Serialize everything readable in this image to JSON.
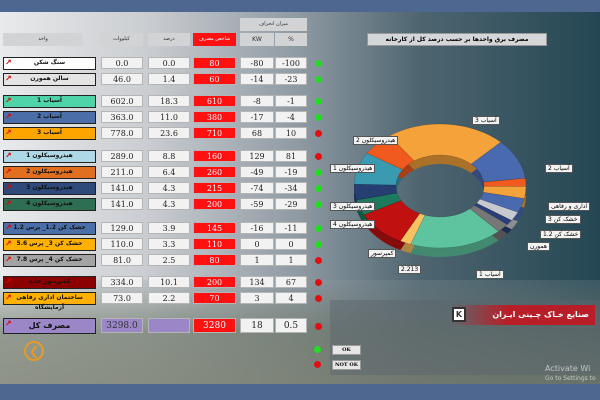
{
  "headers": {
    "unit": "واحد",
    "kw": "کیلووات",
    "percent": "درصد",
    "index": "شاخص مصرف",
    "deviation": "میزان انحراف",
    "dev_kw": "KW",
    "dev_pct": "%"
  },
  "rows": [
    {
      "name": "سنگ شکن",
      "kw": "0.0",
      "pct": "0.0",
      "index": "80",
      "dev_kw": "-80",
      "dev_pct": "-100",
      "status": "green",
      "color": "#ffffff"
    },
    {
      "name": "سالن همورن",
      "kw": "46.0",
      "pct": "1.4",
      "index": "60",
      "dev_kw": "-14",
      "dev_pct": "-23",
      "status": "green",
      "color": "#e4e4e4"
    },
    {
      "name": "آسیاب 1",
      "kw": "602.0",
      "pct": "18.3",
      "index": "610",
      "dev_kw": "-8",
      "dev_pct": "-1",
      "status": "green",
      "color": "#4fd3a8"
    },
    {
      "name": "آسیاب 2",
      "kw": "363.0",
      "pct": "11.0",
      "index": "380",
      "dev_kw": "-17",
      "dev_pct": "-4",
      "status": "green",
      "color": "#4a6ea8"
    },
    {
      "name": "آسیاب 3",
      "kw": "778.0",
      "pct": "23.6",
      "index": "710",
      "dev_kw": "68",
      "dev_pct": "10",
      "status": "red",
      "color": "#ffa500"
    },
    {
      "name": "هیدروسیکلون 1",
      "kw": "289.0",
      "pct": "8.8",
      "index": "160",
      "dev_kw": "129",
      "dev_pct": "81",
      "status": "red",
      "color": "#add8e6"
    },
    {
      "name": "هیدروسیکلون 2",
      "kw": "211.0",
      "pct": "6.4",
      "index": "260",
      "dev_kw": "-49",
      "dev_pct": "-19",
      "status": "green",
      "color": "#e07020"
    },
    {
      "name": "هیدروسیکلون 3",
      "kw": "141.0",
      "pct": "4.3",
      "index": "215",
      "dev_kw": "-74",
      "dev_pct": "-34",
      "status": "green",
      "color": "#2e4a7a"
    },
    {
      "name": "هیدروسیکلون 4",
      "kw": "141.0",
      "pct": "4.3",
      "index": "200",
      "dev_kw": "-59",
      "dev_pct": "-29",
      "status": "green",
      "color": "#2e6e52"
    },
    {
      "name": "خشک کن 1.2_ پرس 1.2",
      "kw": "129.0",
      "pct": "3.9",
      "index": "145",
      "dev_kw": "-16",
      "dev_pct": "-11",
      "status": "green",
      "color": "#4a6ea8"
    },
    {
      "name": "خشک کن 3_ پرس 5.6",
      "kw": "110.0",
      "pct": "3.3",
      "index": "110",
      "dev_kw": "0",
      "dev_pct": "0",
      "status": "green",
      "color": "#ffb000"
    },
    {
      "name": "خشک کن 4_ پرس 7.8",
      "kw": "81.0",
      "pct": "2.5",
      "index": "80",
      "dev_kw": "1",
      "dev_pct": "1",
      "status": "red",
      "color": "#a3a3a3"
    },
    {
      "name": "کمپرسور خانه",
      "kw": "334.0",
      "pct": "10.1",
      "index": "200",
      "dev_kw": "134",
      "dev_pct": "67",
      "status": "red",
      "color": "#8b0000"
    },
    {
      "name": "ساختمان اداری رفاهی آزمایشگاه",
      "kw": "73.0",
      "pct": "2.2",
      "index": "70",
      "dev_kw": "3",
      "dev_pct": "4",
      "status": "red",
      "color": "#ffb000"
    }
  ],
  "total": {
    "name": "مصرف کل",
    "kw": "3298.0",
    "pct": "",
    "index": "3280",
    "dev_kw": "18",
    "dev_pct": "0.5",
    "status": "red",
    "color": "#9b87c8"
  },
  "legend_buttons": {
    "ok": "OK",
    "not_ok": "NOT OK"
  },
  "status_colors": {
    "green": "#22dd22",
    "red": "#e01010"
  },
  "logo_text": "صنایع خـاک چـینی ایـران",
  "watermark": {
    "line1": "Activate Wi",
    "line2": "Go to Settings to"
  },
  "icons": {
    "row_trend": "trend-chart-icon",
    "back": "back-arrow-icon"
  },
  "chart_data": {
    "type": "pie",
    "title": "مصرف برق واحدها بر حسب درصد کل از کارخانه",
    "slices": [
      {
        "label": "آسیاب 3",
        "value": 23.6,
        "color": "#f4a23a"
      },
      {
        "label": "آسیاب 2",
        "value": 11.0,
        "color": "#4a6ab0"
      },
      {
        "label": "اداری و رفاهی",
        "value": 2.2,
        "color": "#f05a1e"
      },
      {
        "label": "خشک کن 3",
        "value": 3.3,
        "color": "#f4a23a"
      },
      {
        "label": "خشک کن 1.2",
        "value": 3.9,
        "color": "#4a6ab0"
      },
      {
        "label": "",
        "value": 2.5,
        "color": "#c8c8d0"
      },
      {
        "label": "همورن",
        "value": 1.4,
        "color": "#2a3e7a"
      },
      {
        "label": "",
        "value": 2.5,
        "color": "#777"
      },
      {
        "label": "آسیاب 1",
        "value": 18.3,
        "color": "#5ec4a0"
      },
      {
        "label": "2.213",
        "value": 2.2,
        "color": "#f7c060"
      },
      {
        "label": "کمپرسور",
        "value": 10.1,
        "color": "#c01010"
      },
      {
        "label": "هیدروسیکلون 4",
        "value": 4.3,
        "color": "#1e7a5e"
      },
      {
        "label": "هیدروسیکلون 3",
        "value": 4.3,
        "color": "#263e72"
      },
      {
        "label": "هیدروسیکلون 1",
        "value": 8.8,
        "color": "#3a9ab0"
      },
      {
        "label": "هیدروسیکلون 2",
        "value": 6.4,
        "color": "#f05a1e"
      }
    ]
  }
}
